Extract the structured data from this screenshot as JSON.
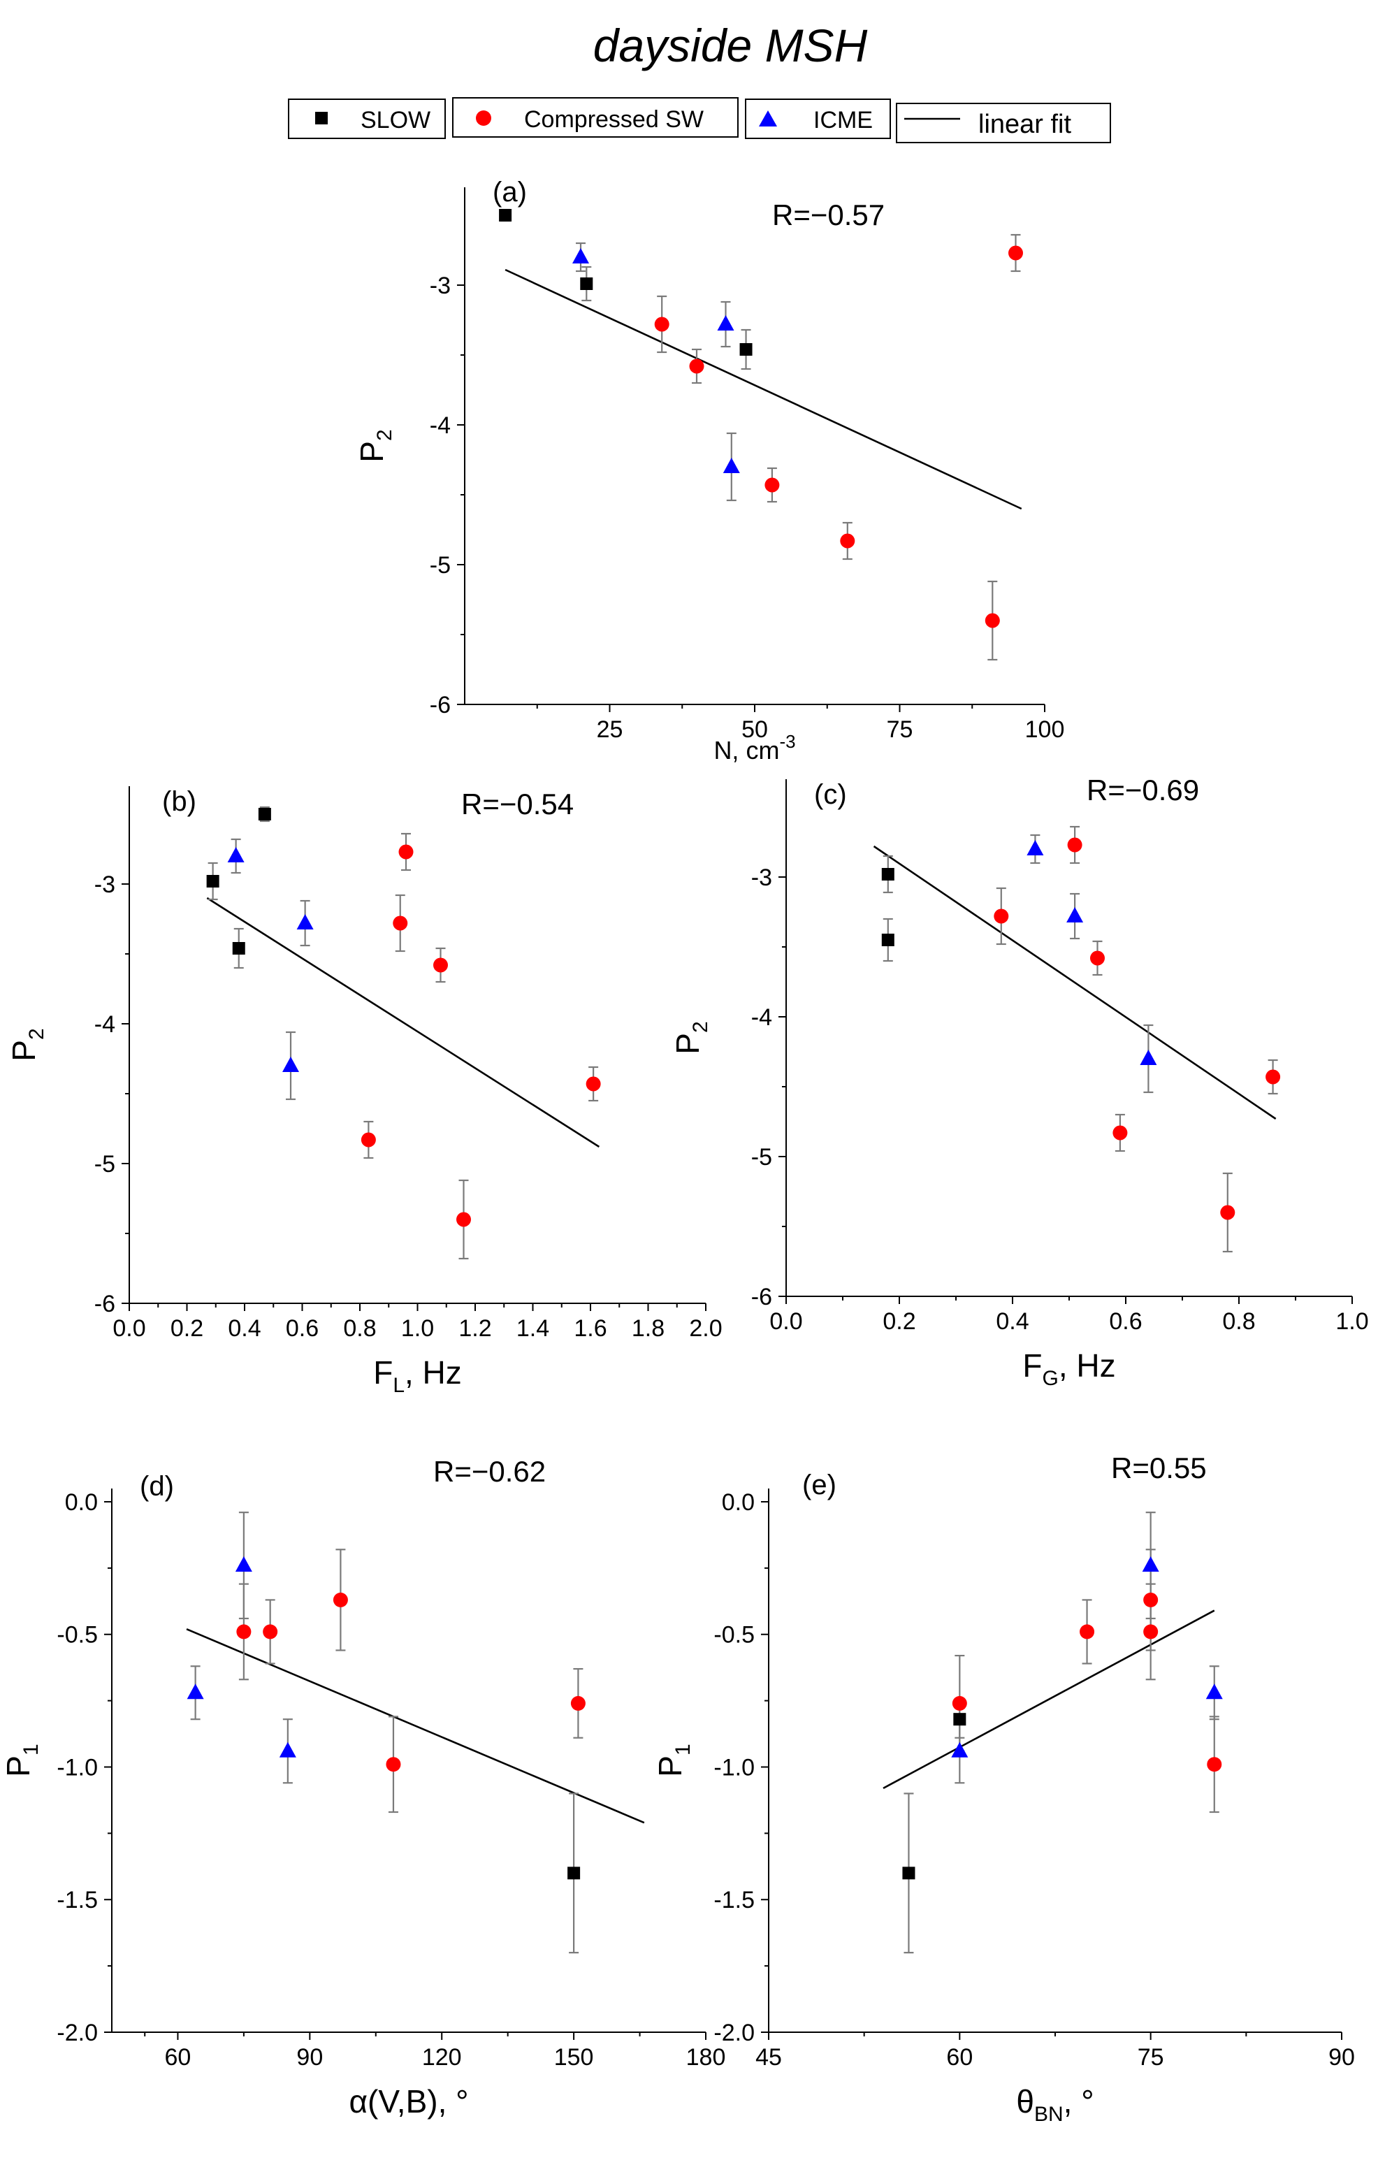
{
  "figure_title": "dayside MSH",
  "legend": [
    {
      "label": "SLOW",
      "marker": "square",
      "color": "#000000"
    },
    {
      "label": "Compressed SW",
      "marker": "circle",
      "color": "#ff0000"
    },
    {
      "label": "ICME",
      "marker": "triangle",
      "color": "#0000ff"
    },
    {
      "label": "linear fit",
      "marker": "line",
      "color": "#000000"
    }
  ],
  "colors": {
    "SLOW": "#000000",
    "Compressed SW": "#ff0000",
    "ICME": "#0000ff",
    "errorbar": "#7a7a7a"
  },
  "chart_data": [
    {
      "type": "scatter",
      "panel": "(a)",
      "annotation": "R=−0.57",
      "xlabel": {
        "main": "N, cm",
        "sup": "-3"
      },
      "ylabel": {
        "main": "P",
        "sub": "2"
      },
      "xlim": [
        0,
        100
      ],
      "ylim": [
        -6,
        -2.3
      ],
      "xticks": [
        25,
        50,
        75,
        100
      ],
      "xtick_labels": [
        "25",
        "50",
        "75",
        "100"
      ],
      "yticks": [
        -6,
        -5,
        -4,
        -3
      ],
      "ytick_labels": [
        "-6",
        "-5",
        "-4",
        "-3"
      ],
      "series": [
        {
          "name": "SLOW",
          "points": [
            [
              7,
              -2.5,
              0.04
            ],
            [
              21,
              -2.99,
              0.12
            ],
            [
              48.5,
              -3.46,
              0.14
            ]
          ]
        },
        {
          "name": "Compressed SW",
          "points": [
            [
              34,
              -3.28,
              0.2
            ],
            [
              40,
              -3.58,
              0.12
            ],
            [
              53,
              -4.43,
              0.12
            ],
            [
              66,
              -4.83,
              0.13
            ],
            [
              91,
              -5.4,
              0.28
            ],
            [
              95,
              -2.77,
              0.13
            ]
          ]
        },
        {
          "name": "ICME",
          "points": [
            [
              20,
              -2.8,
              0.1
            ],
            [
              45,
              -3.28,
              0.16
            ],
            [
              46,
              -4.3,
              0.24
            ]
          ]
        }
      ],
      "fit": {
        "x": [
          7,
          96
        ],
        "y": [
          -2.89,
          -4.6
        ]
      }
    },
    {
      "type": "scatter",
      "panel": "(b)",
      "annotation": "R=−0.54",
      "xlabel": {
        "main": "F",
        "sub": "L",
        "after": ", Hz"
      },
      "ylabel": {
        "main": "P",
        "sub": "2"
      },
      "xlim": [
        0,
        2.0
      ],
      "ylim": [
        -6,
        -2.3
      ],
      "xticks": [
        0.0,
        0.2,
        0.4,
        0.6,
        0.8,
        1.0,
        1.2,
        1.4,
        1.6,
        1.8,
        2.0
      ],
      "xtick_labels": [
        "0.0",
        "0.2",
        "0.4",
        "0.6",
        "0.8",
        "1.0",
        "1.2",
        "1.4",
        "1.6",
        "1.8",
        "2.0"
      ],
      "yticks": [
        -6,
        -5,
        -4,
        -3
      ],
      "ytick_labels": [
        "-6",
        "-5",
        "-4",
        "-3"
      ],
      "series": [
        {
          "name": "SLOW",
          "points": [
            [
              0.29,
              -2.98,
              0.13
            ],
            [
              0.38,
              -3.46,
              0.14
            ],
            [
              0.47,
              -2.5,
              0.05
            ]
          ]
        },
        {
          "name": "Compressed SW",
          "points": [
            [
              0.83,
              -4.83,
              0.13
            ],
            [
              0.94,
              -3.28,
              0.2
            ],
            [
              0.96,
              -2.77,
              0.13
            ],
            [
              1.08,
              -3.58,
              0.12
            ],
            [
              1.16,
              -5.4,
              0.28
            ],
            [
              1.61,
              -4.43,
              0.12
            ]
          ]
        },
        {
          "name": "ICME",
          "points": [
            [
              0.37,
              -2.8,
              0.12
            ],
            [
              0.56,
              -4.3,
              0.24
            ],
            [
              0.61,
              -3.28,
              0.16
            ]
          ]
        }
      ],
      "fit": {
        "x": [
          0.27,
          1.63
        ],
        "y": [
          -3.1,
          -4.88
        ]
      }
    },
    {
      "type": "scatter",
      "panel": "(c)",
      "annotation": "R=−0.69",
      "xlabel": {
        "main": "F",
        "sub": "G",
        "after": ", Hz"
      },
      "ylabel": {
        "main": "P",
        "sub": "2"
      },
      "xlim": [
        0,
        1.0
      ],
      "ylim": [
        -6,
        -2.3
      ],
      "xticks": [
        0.0,
        0.2,
        0.4,
        0.6,
        0.8,
        1.0
      ],
      "xtick_labels": [
        "0.0",
        "0.2",
        "0.4",
        "0.6",
        "0.8",
        "1.0"
      ],
      "yticks": [
        -6,
        -5,
        -4,
        -3
      ],
      "ytick_labels": [
        "-6",
        "-5",
        "-4",
        "-3"
      ],
      "series": [
        {
          "name": "SLOW",
          "points": [
            [
              0.18,
              -2.98,
              0.13
            ],
            [
              0.18,
              -3.45,
              0.15
            ]
          ]
        },
        {
          "name": "Compressed SW",
          "points": [
            [
              0.38,
              -3.28,
              0.2
            ],
            [
              0.51,
              -2.77,
              0.13
            ],
            [
              0.55,
              -3.58,
              0.12
            ],
            [
              0.59,
              -4.83,
              0.13
            ],
            [
              0.78,
              -5.4,
              0.28
            ],
            [
              0.86,
              -4.43,
              0.12
            ]
          ]
        },
        {
          "name": "ICME",
          "points": [
            [
              0.44,
              -2.8,
              0.1
            ],
            [
              0.51,
              -3.28,
              0.16
            ],
            [
              0.64,
              -4.3,
              0.24
            ]
          ]
        }
      ],
      "fit": {
        "x": [
          0.155,
          0.865
        ],
        "y": [
          -2.78,
          -4.73
        ]
      }
    },
    {
      "type": "scatter",
      "panel": "(d)",
      "annotation": "R=−0.62",
      "xlabel": {
        "main": "α(V,B), °"
      },
      "ylabel": {
        "main": "P",
        "sub": "1"
      },
      "xlim": [
        45,
        180
      ],
      "ylim": [
        -2.0,
        0.05
      ],
      "xticks": [
        60,
        90,
        120,
        150,
        180
      ],
      "xtick_labels": [
        "60",
        "90",
        "120",
        "150",
        "180"
      ],
      "yticks": [
        -2.0,
        -1.5,
        -1.0,
        -0.5,
        0.0
      ],
      "ytick_labels": [
        "-2.0",
        "-1.5",
        "-1.0",
        "-0.5",
        "0.0"
      ],
      "series": [
        {
          "name": "SLOW",
          "points": [
            [
              150,
              -1.4,
              0.3
            ]
          ]
        },
        {
          "name": "Compressed SW",
          "points": [
            [
              75,
              -0.49,
              0.18
            ],
            [
              81,
              -0.49,
              0.12
            ],
            [
              97,
              -0.37,
              0.19
            ],
            [
              109,
              -0.99,
              0.18
            ],
            [
              151,
              -0.76,
              0.13
            ]
          ]
        },
        {
          "name": "ICME",
          "points": [
            [
              64,
              -0.72,
              0.1
            ],
            [
              75,
              -0.24,
              0.2
            ],
            [
              85,
              -0.94,
              0.12
            ]
          ]
        }
      ],
      "fit": {
        "x": [
          62,
          166
        ],
        "y": [
          -0.48,
          -1.21
        ]
      }
    },
    {
      "type": "scatter",
      "panel": "(e)",
      "annotation": "R=0.55",
      "xlabel": {
        "main": "θ",
        "sub": "BN",
        "after": ", °"
      },
      "ylabel": {
        "main": "P",
        "sub": "1"
      },
      "xlim": [
        45,
        90
      ],
      "ylim": [
        -2.0,
        0.05
      ],
      "xticks": [
        45,
        60,
        75,
        90
      ],
      "xtick_labels": [
        "45",
        "60",
        "75",
        "90"
      ],
      "yticks": [
        -2.0,
        -1.5,
        -1.0,
        -0.5,
        0.0
      ],
      "ytick_labels": [
        "-2.0",
        "-1.5",
        "-1.0",
        "-0.5",
        "0.0"
      ],
      "series": [
        {
          "name": "SLOW",
          "points": [
            [
              56,
              -1.4,
              0.3
            ],
            [
              60,
              -0.82,
              0.07
            ]
          ]
        },
        {
          "name": "Compressed SW",
          "points": [
            [
              60,
              -0.76,
              0.18
            ],
            [
              70,
              -0.49,
              0.12
            ],
            [
              75,
              -0.37,
              0.19
            ],
            [
              75,
              -0.49,
              0.18
            ],
            [
              80,
              -0.99,
              0.18
            ]
          ]
        },
        {
          "name": "ICME",
          "points": [
            [
              60,
              -0.94,
              0.12
            ],
            [
              75,
              -0.24,
              0.2
            ],
            [
              80,
              -0.72,
              0.1
            ]
          ]
        }
      ],
      "fit": {
        "x": [
          54,
          80
        ],
        "y": [
          -1.08,
          -0.41
        ]
      }
    }
  ]
}
